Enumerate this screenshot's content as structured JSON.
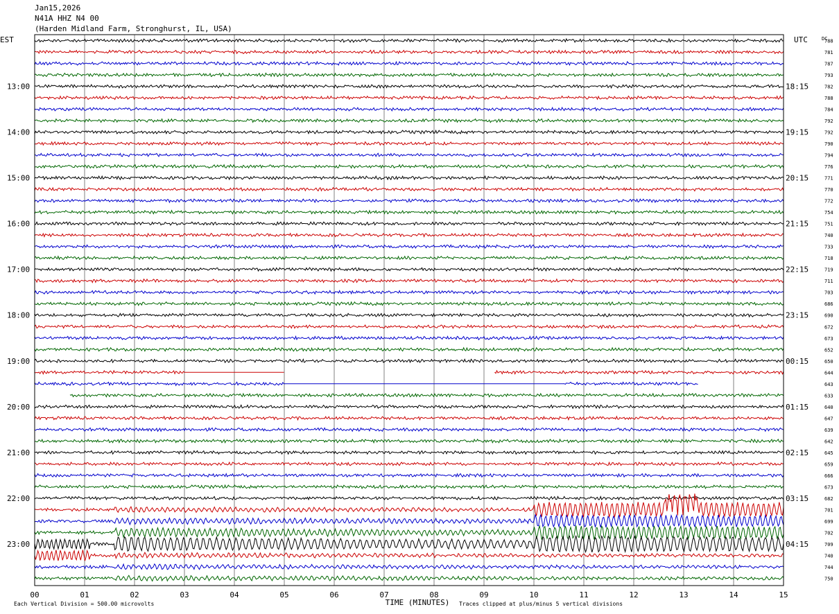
{
  "header": {
    "date": "Jan15,2026",
    "station": "N41A HHZ N4 00",
    "location": "(Harden Midland Farm, Stronghurst, IL, USA)"
  },
  "labels": {
    "left_zone": "EST",
    "right_zone": "UTC",
    "dc": "DC",
    "xlabel": "TIME (MINUTES)",
    "scale_note": "Each Vertical Division =  500.00 microvolts",
    "clip_note": "Traces clipped at plus/minus 5 vertical divisions"
  },
  "colors": [
    "#000000",
    "#cc0000",
    "#0000cc",
    "#006600"
  ],
  "chart_data": {
    "type": "line",
    "title": "Jan15,2026 N41A HHZ N4 00 (Harden Midland Farm, Stronghurst, IL, USA)",
    "xlabel": "TIME (MINUTES)",
    "xlim": [
      0,
      15
    ],
    "x_ticks": [
      "00",
      "01",
      "02",
      "03",
      "04",
      "05",
      "06",
      "07",
      "08",
      "09",
      "10",
      "11",
      "12",
      "13",
      "14",
      "15"
    ],
    "rows_per_hour": 4,
    "row_count": 48,
    "left_hour_labels": [
      "13:00",
      "14:00",
      "15:00",
      "16:00",
      "17:00",
      "18:00",
      "19:00",
      "20:00",
      "21:00",
      "22:00",
      "23:00"
    ],
    "right_hour_labels": [
      "18:15",
      "19:15",
      "20:15",
      "21:15",
      "22:15",
      "23:15",
      "00:15",
      "01:15",
      "02:15",
      "03:15",
      "04:15"
    ],
    "dc_values": [
      "788",
      "781",
      "787",
      "793",
      "782",
      "788",
      "784",
      "792",
      "792",
      "790",
      "794",
      "776",
      "771",
      "770",
      "772",
      "754",
      "751",
      "740",
      "733",
      "718",
      "719",
      "711",
      "703",
      "686",
      "690",
      "672",
      "673",
      "652",
      "650",
      "644",
      "643",
      "633",
      "640",
      "647",
      "639",
      "642",
      "645",
      "659",
      "666",
      "673",
      "682",
      "701",
      "699",
      "702",
      "709",
      "740",
      "744",
      "750"
    ],
    "gaps": [
      {
        "row": 29,
        "x0": 3.0,
        "x1": 5.0,
        "flat_from": 3.0
      },
      {
        "row": 29,
        "x0": 5.0,
        "x1": 9.2
      },
      {
        "row": 30,
        "x0": 5.0,
        "x1": 10.6,
        "flat_from": 5.0
      },
      {
        "row": 30,
        "x0": 13.3,
        "x1": 15.0
      },
      {
        "row": 31,
        "x0": 0.0,
        "x1": 0.7
      }
    ],
    "event": {
      "start_row": 41,
      "onset_minute": 1.6
    }
  }
}
